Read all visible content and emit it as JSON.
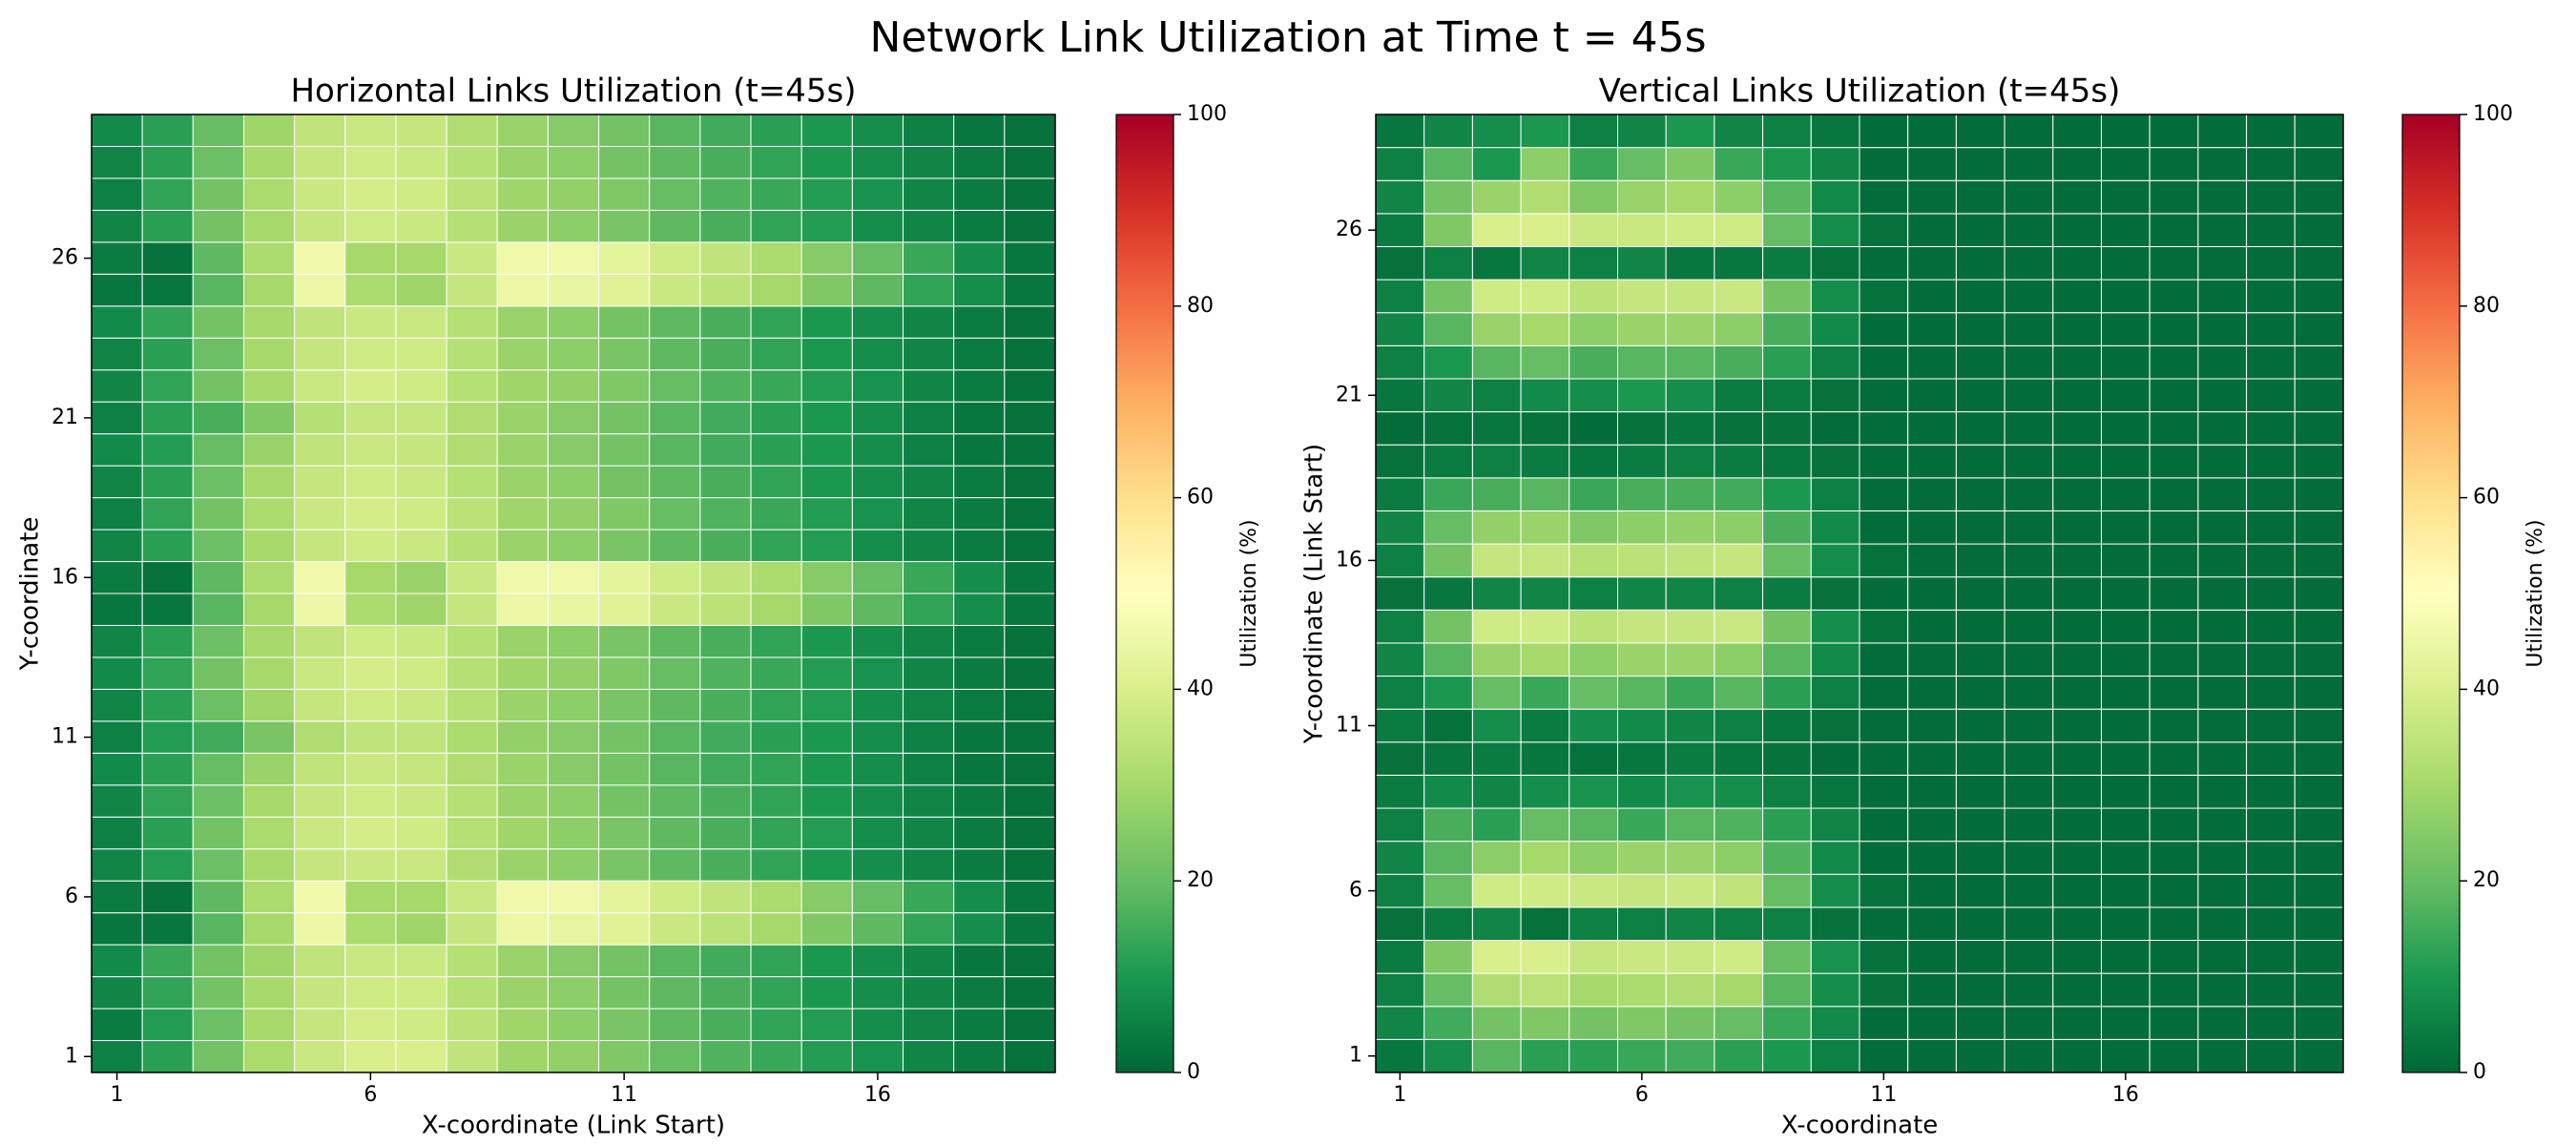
{
  "title": "Network Link Utilization at Time t = 45s",
  "chart_data": [
    {
      "type": "heatmap",
      "title": "Horizontal Links Utilization (t=45s)",
      "x_label": "X-coordinate (Link Start)",
      "y_label": "Y-coordinate",
      "colormap": "RdYlGn_r",
      "cell_edge_color": "#ffffff",
      "x": [
        1,
        2,
        3,
        4,
        5,
        6,
        7,
        8,
        9,
        10,
        11,
        12,
        13,
        14,
        15,
        16,
        17,
        18,
        19
      ],
      "y": [
        1,
        2,
        3,
        4,
        5,
        6,
        7,
        8,
        9,
        10,
        11,
        12,
        13,
        14,
        15,
        16,
        17,
        18,
        19,
        20,
        21,
        22,
        23,
        24,
        25,
        26,
        27,
        28,
        29,
        30
      ],
      "xlim": [
        0.5,
        19.5
      ],
      "ylim": [
        0.5,
        30.5
      ],
      "xticks": [
        1,
        6,
        11,
        16
      ],
      "yticks": [
        1,
        6,
        11,
        16,
        21,
        26
      ],
      "colorbar": {
        "label": "Utilization (%)",
        "lim": [
          0,
          100
        ],
        "ticks": [
          0,
          20,
          40,
          60,
          80,
          100
        ]
      },
      "values": [
        [
          5,
          12,
          22,
          31,
          37,
          40,
          40,
          35,
          29,
          27,
          24,
          20,
          17,
          14,
          11,
          9,
          6,
          4,
          2
        ],
        [
          4,
          11,
          21,
          30,
          36,
          39,
          38,
          34,
          29,
          26,
          23,
          19,
          16,
          13,
          11,
          8,
          6,
          4,
          2
        ],
        [
          6,
          13,
          22,
          30,
          36,
          38,
          38,
          33,
          28,
          26,
          22,
          19,
          16,
          13,
          10,
          8,
          6,
          4,
          2
        ],
        [
          7,
          14,
          22,
          29,
          35,
          37,
          37,
          33,
          28,
          25,
          22,
          18,
          15,
          13,
          10,
          8,
          6,
          3,
          2
        ],
        [
          3,
          3,
          18,
          30,
          45,
          31,
          29,
          36,
          45,
          44,
          42,
          37,
          34,
          30,
          24,
          19,
          13,
          8,
          3
        ],
        [
          4,
          2,
          19,
          31,
          46,
          30,
          30,
          37,
          46,
          46,
          43,
          38,
          35,
          31,
          25,
          20,
          14,
          8,
          3
        ],
        [
          6,
          11,
          21,
          30,
          36,
          37,
          37,
          32,
          28,
          26,
          23,
          19,
          16,
          13,
          10,
          8,
          6,
          4,
          2
        ],
        [
          5,
          12,
          22,
          31,
          37,
          39,
          38,
          33,
          29,
          26,
          23,
          19,
          16,
          13,
          11,
          8,
          6,
          4,
          2
        ],
        [
          6,
          13,
          21,
          30,
          36,
          38,
          37,
          33,
          28,
          26,
          22,
          19,
          16,
          13,
          10,
          8,
          6,
          4,
          2
        ],
        [
          7,
          12,
          20,
          28,
          35,
          37,
          36,
          32,
          28,
          25,
          22,
          18,
          15,
          13,
          10,
          8,
          5,
          3,
          2
        ],
        [
          5,
          11,
          15,
          23,
          32,
          35,
          35,
          31,
          27,
          25,
          22,
          18,
          15,
          12,
          10,
          8,
          5,
          3,
          2
        ],
        [
          6,
          12,
          21,
          29,
          36,
          38,
          37,
          33,
          28,
          26,
          23,
          19,
          16,
          13,
          11,
          8,
          6,
          4,
          2
        ],
        [
          7,
          13,
          22,
          30,
          37,
          39,
          38,
          33,
          29,
          27,
          24,
          20,
          17,
          14,
          11,
          9,
          6,
          4,
          2
        ],
        [
          6,
          12,
          21,
          30,
          35,
          38,
          37,
          33,
          28,
          26,
          23,
          19,
          16,
          13,
          10,
          8,
          6,
          4,
          2
        ],
        [
          3,
          3,
          18,
          30,
          45,
          31,
          29,
          36,
          45,
          44,
          42,
          37,
          34,
          30,
          24,
          19,
          13,
          8,
          3
        ],
        [
          4,
          2,
          19,
          31,
          46,
          30,
          28,
          37,
          46,
          46,
          43,
          38,
          35,
          31,
          25,
          20,
          14,
          8,
          3
        ],
        [
          6,
          12,
          21,
          30,
          36,
          38,
          37,
          33,
          28,
          26,
          23,
          19,
          16,
          13,
          11,
          8,
          6,
          4,
          2
        ],
        [
          5,
          13,
          22,
          31,
          37,
          39,
          38,
          34,
          29,
          27,
          24,
          20,
          17,
          14,
          11,
          9,
          6,
          4,
          2
        ],
        [
          6,
          12,
          21,
          30,
          36,
          38,
          37,
          33,
          28,
          26,
          22,
          19,
          16,
          13,
          10,
          8,
          6,
          4,
          2
        ],
        [
          7,
          11,
          20,
          28,
          35,
          37,
          36,
          32,
          28,
          25,
          22,
          18,
          15,
          12,
          10,
          8,
          5,
          3,
          2
        ],
        [
          5,
          12,
          16,
          24,
          33,
          36,
          36,
          32,
          28,
          25,
          22,
          18,
          15,
          12,
          10,
          8,
          5,
          3,
          2
        ],
        [
          6,
          13,
          22,
          30,
          37,
          39,
          38,
          33,
          29,
          27,
          24,
          20,
          17,
          14,
          11,
          9,
          6,
          4,
          2
        ],
        [
          6,
          12,
          21,
          30,
          36,
          38,
          38,
          33,
          28,
          26,
          23,
          19,
          16,
          13,
          10,
          8,
          6,
          4,
          2
        ],
        [
          7,
          13,
          22,
          30,
          35,
          37,
          37,
          33,
          28,
          26,
          22,
          19,
          16,
          13,
          10,
          8,
          6,
          4,
          2
        ],
        [
          3,
          3,
          18,
          30,
          45,
          31,
          29,
          36,
          45,
          44,
          42,
          37,
          34,
          30,
          24,
          19,
          13,
          8,
          3
        ],
        [
          4,
          2,
          19,
          31,
          46,
          30,
          30,
          37,
          46,
          46,
          43,
          38,
          35,
          31,
          25,
          20,
          14,
          8,
          3
        ],
        [
          6,
          12,
          22,
          30,
          36,
          38,
          37,
          33,
          28,
          26,
          23,
          19,
          16,
          13,
          11,
          8,
          6,
          4,
          2
        ],
        [
          5,
          13,
          22,
          31,
          37,
          39,
          38,
          34,
          29,
          27,
          24,
          20,
          17,
          14,
          11,
          9,
          6,
          4,
          2
        ],
        [
          6,
          12,
          21,
          30,
          36,
          38,
          37,
          33,
          28,
          26,
          22,
          19,
          16,
          13,
          10,
          8,
          6,
          4,
          2
        ],
        [
          7,
          12,
          20,
          29,
          35,
          37,
          36,
          32,
          28,
          25,
          22,
          18,
          15,
          12,
          10,
          8,
          5,
          3,
          2
        ]
      ]
    },
    {
      "type": "heatmap",
      "title": "Vertical Links Utilization (t=45s)",
      "x_label": "X-coordinate",
      "y_label": "Y-coordinate (Link Start)",
      "colormap": "RdYlGn_r",
      "cell_edge_color": "#ffffff",
      "x": [
        1,
        2,
        3,
        4,
        5,
        6,
        7,
        8,
        9,
        10,
        11,
        12,
        13,
        14,
        15,
        16,
        17,
        18,
        19,
        20
      ],
      "y": [
        1,
        2,
        3,
        4,
        5,
        6,
        7,
        8,
        9,
        10,
        11,
        12,
        13,
        14,
        15,
        16,
        17,
        18,
        19,
        20,
        21,
        22,
        23,
        24,
        25,
        26,
        27,
        28,
        29
      ],
      "xlim": [
        0.5,
        20.5
      ],
      "ylim": [
        0.5,
        29.5
      ],
      "xticks": [
        1,
        6,
        11,
        16
      ],
      "yticks": [
        1,
        6,
        11,
        16,
        21,
        26
      ],
      "colorbar": {
        "label": "Utilization (%)",
        "lim": [
          0,
          100
        ],
        "ticks": [
          0,
          20,
          40,
          60,
          80,
          100
        ]
      },
      "values": [
        [
          3,
          8,
          18,
          12,
          12,
          14,
          15,
          12,
          10,
          5,
          1,
          1,
          1,
          1,
          1,
          1,
          1,
          1,
          1,
          1
        ],
        [
          6,
          15,
          22,
          24,
          22,
          24,
          22,
          20,
          14,
          7,
          1,
          1,
          1,
          1,
          1,
          1,
          1,
          1,
          1,
          1
        ],
        [
          5,
          20,
          32,
          34,
          30,
          31,
          32,
          30,
          18,
          8,
          2,
          1,
          1,
          1,
          1,
          1,
          1,
          1,
          1,
          1
        ],
        [
          4,
          24,
          40,
          40,
          36,
          37,
          37,
          38,
          20,
          9,
          2,
          1,
          1,
          1,
          1,
          1,
          1,
          1,
          1,
          1
        ],
        [
          2,
          4,
          6,
          2,
          5,
          5,
          6,
          5,
          5,
          2,
          1,
          1,
          1,
          1,
          1,
          1,
          1,
          1,
          1,
          1
        ],
        [
          5,
          20,
          38,
          38,
          37,
          36,
          37,
          35,
          20,
          8,
          2,
          1,
          1,
          1,
          1,
          1,
          1,
          1,
          1,
          1
        ],
        [
          6,
          18,
          26,
          30,
          26,
          28,
          28,
          26,
          17,
          7,
          1,
          1,
          1,
          1,
          1,
          1,
          1,
          1,
          1,
          1
        ],
        [
          5,
          16,
          12,
          20,
          18,
          14,
          18,
          17,
          12,
          6,
          1,
          1,
          1,
          1,
          1,
          1,
          1,
          1,
          1,
          1
        ],
        [
          4,
          7,
          6,
          8,
          9,
          7,
          9,
          8,
          5,
          3,
          1,
          1,
          1,
          1,
          1,
          1,
          1,
          1,
          1,
          1
        ],
        [
          2,
          3,
          4,
          3,
          2,
          3,
          4,
          3,
          2,
          1,
          1,
          1,
          1,
          1,
          1,
          1,
          1,
          1,
          1,
          1
        ],
        [
          4,
          2,
          8,
          4,
          8,
          7,
          6,
          5,
          3,
          2,
          1,
          1,
          1,
          1,
          1,
          1,
          1,
          1,
          1,
          1
        ],
        [
          5,
          10,
          20,
          14,
          20,
          18,
          14,
          18,
          12,
          5,
          1,
          1,
          1,
          1,
          1,
          1,
          1,
          1,
          1,
          1
        ],
        [
          6,
          18,
          28,
          30,
          26,
          28,
          28,
          26,
          18,
          7,
          1,
          1,
          1,
          1,
          1,
          1,
          1,
          1,
          1,
          1
        ],
        [
          5,
          22,
          38,
          38,
          34,
          36,
          36,
          37,
          22,
          8,
          2,
          1,
          1,
          1,
          1,
          1,
          1,
          1,
          1,
          1
        ],
        [
          2,
          3,
          6,
          6,
          5,
          6,
          6,
          5,
          4,
          2,
          1,
          1,
          1,
          1,
          1,
          1,
          1,
          1,
          1,
          1
        ],
        [
          5,
          22,
          36,
          36,
          33,
          34,
          35,
          36,
          20,
          8,
          2,
          1,
          1,
          1,
          1,
          1,
          1,
          1,
          1,
          1
        ],
        [
          6,
          20,
          27,
          28,
          24,
          26,
          27,
          26,
          16,
          7,
          1,
          1,
          1,
          1,
          1,
          1,
          1,
          1,
          1,
          1
        ],
        [
          4,
          14,
          16,
          18,
          14,
          16,
          16,
          15,
          10,
          5,
          1,
          1,
          1,
          1,
          1,
          1,
          1,
          1,
          1,
          1
        ],
        [
          2,
          4,
          5,
          4,
          3,
          4,
          5,
          4,
          3,
          2,
          1,
          1,
          1,
          1,
          1,
          1,
          1,
          1,
          1,
          1
        ],
        [
          1,
          2,
          3,
          2,
          1,
          2,
          3,
          2,
          2,
          1,
          1,
          1,
          1,
          1,
          1,
          1,
          1,
          1,
          1,
          1
        ],
        [
          3,
          6,
          5,
          7,
          8,
          10,
          8,
          4,
          4,
          2,
          1,
          1,
          1,
          1,
          1,
          1,
          1,
          1,
          1,
          1
        ],
        [
          5,
          10,
          18,
          20,
          16,
          18,
          18,
          16,
          12,
          5,
          1,
          1,
          1,
          1,
          1,
          1,
          1,
          1,
          1,
          1
        ],
        [
          6,
          18,
          28,
          30,
          26,
          28,
          28,
          26,
          16,
          7,
          1,
          1,
          1,
          1,
          1,
          1,
          1,
          1,
          1,
          1
        ],
        [
          5,
          22,
          38,
          38,
          34,
          36,
          36,
          37,
          22,
          8,
          2,
          1,
          1,
          1,
          1,
          1,
          1,
          1,
          1,
          1
        ],
        [
          2,
          5,
          3,
          6,
          5,
          6,
          3,
          3,
          4,
          2,
          1,
          1,
          1,
          1,
          1,
          1,
          1,
          1,
          1,
          1
        ],
        [
          4,
          24,
          40,
          40,
          37,
          37,
          38,
          38,
          20,
          8,
          2,
          1,
          1,
          1,
          1,
          1,
          1,
          1,
          1,
          1
        ],
        [
          6,
          22,
          28,
          32,
          24,
          28,
          30,
          26,
          18,
          7,
          1,
          1,
          1,
          1,
          1,
          1,
          1,
          1,
          1,
          1
        ],
        [
          5,
          18,
          10,
          26,
          14,
          20,
          24,
          14,
          10,
          6,
          1,
          1,
          1,
          1,
          1,
          1,
          1,
          1,
          1,
          1
        ],
        [
          3,
          6,
          8,
          10,
          5,
          6,
          10,
          6,
          5,
          3,
          1,
          1,
          1,
          1,
          1,
          1,
          1,
          1,
          1,
          1
        ]
      ]
    }
  ]
}
